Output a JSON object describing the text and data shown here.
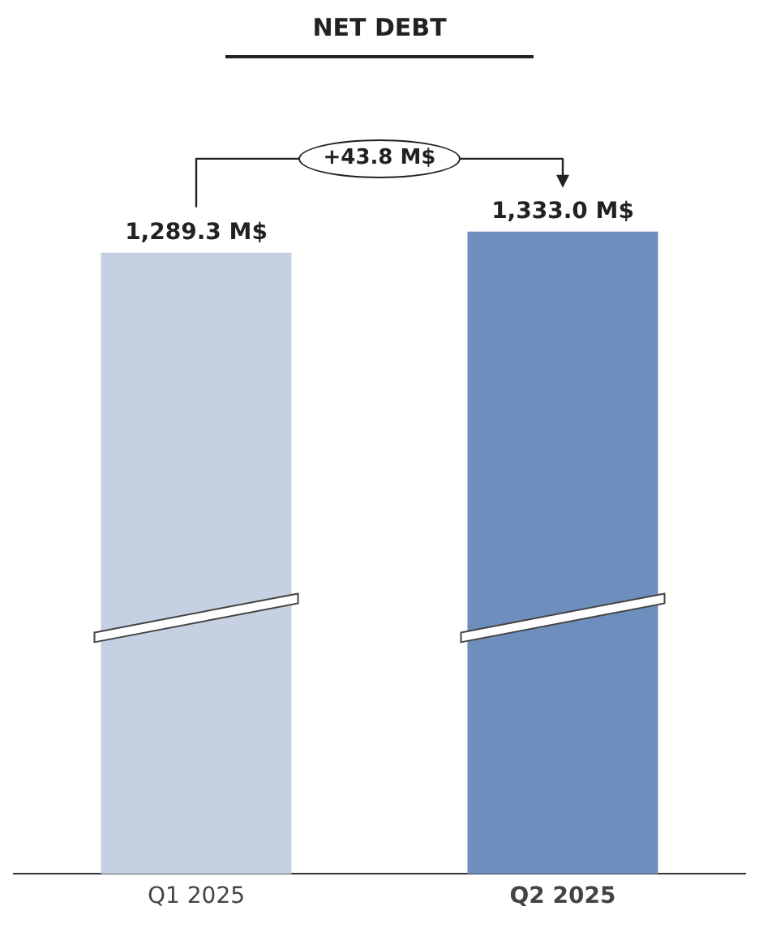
{
  "chart_data": {
    "type": "bar",
    "title": "NET DEBT",
    "categories": [
      "Q1 2025",
      "Q2 2025"
    ],
    "values": [
      1289.3,
      1333.0
    ],
    "colors": [
      "#c5d0e3",
      "#6e8fbd"
    ],
    "value_labels": [
      "1,289.3 M$",
      "1,333.0 M$"
    ],
    "annotations": [
      "+43.8 M$"
    ]
  }
}
